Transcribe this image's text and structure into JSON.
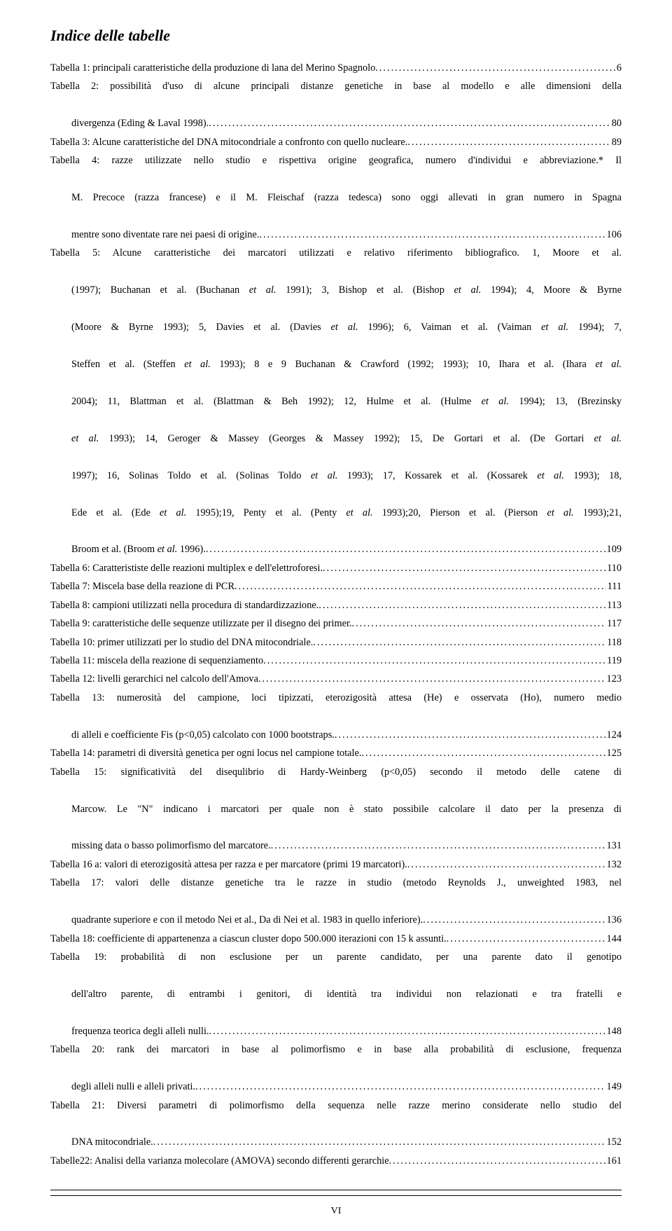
{
  "title": "Indice delle tabelle",
  "page_number": "VI",
  "entries": [
    {
      "lines": [
        "Tabella 1: principali caratteristiche della produzione di lana del Merino Spagnolo"
      ],
      "page": "6",
      "indent_cont": false
    },
    {
      "lines": [
        "Tabella 2: possibilità d'uso di alcune principali distanze genetiche in base al modello e alle dimensioni della",
        "divergenza (Eding & Laval 1998). "
      ],
      "page": "80",
      "indent_cont": true
    },
    {
      "lines": [
        "Tabella 3: Alcune caratteristiche del DNA mitocondriale a confronto con quello nucleare. "
      ],
      "page": "89",
      "indent_cont": false
    },
    {
      "lines": [
        "Tabella 4: razze utilizzate nello studio e rispettiva origine geografica, numero d'individui e abbreviazione.* Il",
        "M. Precoce (razza francese) e il M. Fleischaf (razza tedesca) sono oggi allevati in gran numero in Spagna",
        "mentre sono diventate rare nei paesi di origine. "
      ],
      "page": "106",
      "indent_cont": true
    },
    {
      "lines": [
        "Tabella 5: Alcune caratteristiche dei marcatori utilizzati e relativo riferimento bibliografico. 1, Moore et al.",
        "(1997); Buchanan et al. (Buchanan <i>et al.</i> 1991); 3, Bishop et al. (Bishop <i>et al.</i> 1994); 4, Moore & Byrne",
        "(Moore & Byrne 1993); 5, Davies et al. (Davies <i>et al.</i> 1996); 6, Vaiman et al. (Vaiman <i>et al.</i> 1994); 7,",
        "Steffen et al. (Steffen <i>et al.</i> 1993); 8 e 9 Buchanan & Crawford (1992; 1993); 10, Ihara et al. (Ihara <i>et al.</i>",
        "2004); 11, Blattman et al. (Blattman & Beh 1992); 12, Hulme et al. (Hulme <i>et al.</i> 1994); 13, (Brezinsky",
        "<i>et al.</i> 1993); 14, Geroger & Massey (Georges & Massey 1992); 15, De Gortari et al. (De Gortari <i>et al.</i>",
        "1997); 16, Solinas Toldo et al. (Solinas Toldo <i>et al.</i> 1993); 17, Kossarek et al. (Kossarek <i>et al.</i> 1993); 18,",
        "Ede et al. (Ede <i>et al.</i> 1995);19, Penty et al. (Penty <i>et al.</i> 1993);20, Pierson et al. (Pierson <i>et al.</i> 1993);21,",
        "Broom et al. (Broom <i>et al.</i> 1996)."
      ],
      "page": "109",
      "indent_cont": true
    },
    {
      "lines": [
        "Tabella 6: Caratterististe delle reazioni multiplex e dell'elettroforesi."
      ],
      "page": "110",
      "indent_cont": false
    },
    {
      "lines": [
        "Tabella 7: Miscela base della reazione di PCR "
      ],
      "page": "111",
      "indent_cont": false
    },
    {
      "lines": [
        "Tabella 8: campioni utilizzati nella procedura di standardizzazione. "
      ],
      "page": "113",
      "indent_cont": false
    },
    {
      "lines": [
        "Tabella 9: caratteristiche delle sequenze utilizzate per il disegno dei primer. "
      ],
      "page": "117",
      "indent_cont": false
    },
    {
      "lines": [
        "Tabella 10: primer utilizzati per lo studio del DNA mitocondriale. "
      ],
      "page": "118",
      "indent_cont": false
    },
    {
      "lines": [
        "Tabella 11: miscela della reazione di sequenziamento "
      ],
      "page": "119",
      "indent_cont": false
    },
    {
      "lines": [
        "Tabella 12: livelli gerarchici nel calcolo dell'Amova"
      ],
      "page": "123",
      "indent_cont": false
    },
    {
      "lines": [
        "Tabella 13: numerosità del campione, loci tipizzati, eterozigosità attesa (He) e osservata (Ho), numero medio",
        "di alleli e coefficiente Fis (p<0,05) calcolato con 1000 bootstraps. "
      ],
      "page": "124",
      "indent_cont": true
    },
    {
      "lines": [
        "Tabella 14: parametri di diversità genetica per ogni locus nel campione totale."
      ],
      "page": "125",
      "indent_cont": false
    },
    {
      "lines": [
        "Tabella 15: significatività del disequlibrio di Hardy-Weinberg (p<0,05) secondo il metodo delle catene di",
        "Marcow. Le \"N\" indicano i marcatori per quale non è stato possibile calcolare il dato per la presenza di",
        "missing data o basso polimorfismo del marcatore. "
      ],
      "page": "131",
      "indent_cont": true
    },
    {
      "lines": [
        "Tabella 16 a: valori di eterozigosità attesa per razza e per marcatore (primi 19 marcatori). "
      ],
      "page": "132",
      "indent_cont": false
    },
    {
      "lines": [
        "Tabella 17: valori delle distanze genetiche tra le razze in studio (metodo Reynolds J., unweighted 1983, nel",
        "quadrante superiore e con il metodo Nei et al., Da di Nei et al. 1983 in quello inferiore). "
      ],
      "page": "136",
      "indent_cont": true
    },
    {
      "lines": [
        "Tabella 18: coefficiente di appartenenza a ciascun cluster dopo 500.000 iterazioni con 15 k assunti. "
      ],
      "page": "144",
      "indent_cont": false
    },
    {
      "lines": [
        "Tabella 19: probabilità di non esclusione per un parente candidato, per una parente dato il genotipo",
        "dell'altro parente, di entrambi i genitori, di identità tra individui non relazionati e tra fratelli e",
        "frequenza teorica degli alleli nulli. "
      ],
      "page": "148",
      "indent_cont": true
    },
    {
      "lines": [
        "Tabella 20: rank dei marcatori in base al polimorfismo e in base alla probabilità di esclusione, frequenza",
        "degli alleli nulli e alleli privati."
      ],
      "page": "149",
      "indent_cont": true
    },
    {
      "lines": [
        "Tabella 21: Diversi parametri di polimorfismo della sequenza nelle razze merino considerate nello studio del",
        "DNA mitocondriale. "
      ],
      "page": "152",
      "indent_cont": true
    },
    {
      "lines": [
        "Tabelle22: Analisi della varianza molecolare (AMOVA) secondo differenti gerarchie"
      ],
      "page": "161",
      "indent_cont": false
    }
  ]
}
